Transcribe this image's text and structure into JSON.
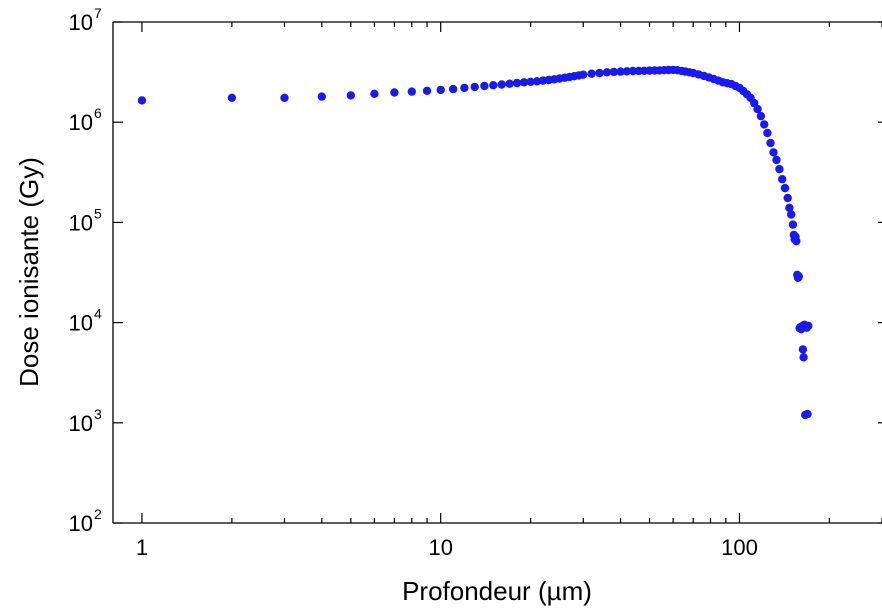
{
  "chart_data": {
    "type": "scatter",
    "xlabel": "Profondeur (µm)",
    "ylabel": "Dose ionisante (Gy)",
    "xscale": "log",
    "yscale": "log",
    "xlim": [
      0.8,
      300
    ],
    "ylim": [
      100,
      10000000
    ],
    "x_ticks": [
      {
        "value": 1,
        "label": "1"
      },
      {
        "value": 10,
        "label": "10"
      },
      {
        "value": 100,
        "label": "100"
      }
    ],
    "y_ticks": [
      {
        "value": 100,
        "base": "10",
        "exp": "2"
      },
      {
        "value": 1000,
        "base": "10",
        "exp": "3"
      },
      {
        "value": 10000,
        "base": "10",
        "exp": "4"
      },
      {
        "value": 100000,
        "base": "10",
        "exp": "5"
      },
      {
        "value": 1000000,
        "base": "10",
        "exp": "6"
      },
      {
        "value": 10000000,
        "base": "10",
        "exp": "7"
      }
    ],
    "grid": false,
    "marker_color": "#1a1aee",
    "series": [
      {
        "x": [
          1,
          2,
          3,
          4,
          5,
          6,
          7,
          8,
          9,
          10,
          11,
          12,
          13,
          14,
          15,
          16,
          17,
          18,
          19,
          20,
          21,
          22,
          23,
          24,
          25,
          26,
          27,
          28,
          29,
          30,
          32,
          34,
          36,
          38,
          40,
          42,
          44,
          46,
          48,
          50,
          52,
          54,
          56,
          58,
          60,
          62,
          64,
          66,
          68,
          70,
          73,
          76,
          79,
          82,
          85,
          88,
          91,
          94,
          97,
          100,
          103,
          106,
          109,
          112,
          115,
          118,
          121,
          124,
          127,
          130,
          133,
          136,
          139,
          142,
          145,
          147,
          149,
          151,
          152,
          153,
          154,
          155,
          156,
          157,
          158,
          159,
          160,
          161,
          162,
          163,
          164,
          165,
          166,
          167,
          168,
          169,
          170
        ],
        "y": [
          1650000,
          1750000,
          1750000,
          1800000,
          1850000,
          1920000,
          1980000,
          2020000,
          2060000,
          2100000,
          2140000,
          2200000,
          2250000,
          2300000,
          2340000,
          2380000,
          2420000,
          2460000,
          2500000,
          2530000,
          2560000,
          2600000,
          2640000,
          2680000,
          2730000,
          2780000,
          2830000,
          2880000,
          2930000,
          2980000,
          3050000,
          3100000,
          3150000,
          3180000,
          3200000,
          3220000,
          3240000,
          3250000,
          3260000,
          3270000,
          3280000,
          3290000,
          3300000,
          3320000,
          3330000,
          3300000,
          3250000,
          3200000,
          3150000,
          3100000,
          3000000,
          2900000,
          2800000,
          2700000,
          2600000,
          2500000,
          2450000,
          2400000,
          2300000,
          2200000,
          2050000,
          1900000,
          1750000,
          1550000,
          1350000,
          1150000,
          950000,
          780000,
          620000,
          500000,
          420000,
          340000,
          270000,
          220000,
          175000,
          140000,
          120000,
          95000,
          75000,
          68000,
          72000,
          65000,
          30000,
          28000,
          29000,
          8800,
          9000,
          8600,
          9200,
          5400,
          4500,
          9500,
          1200,
          9100,
          8900,
          1220,
          9300
        ]
      }
    ]
  }
}
